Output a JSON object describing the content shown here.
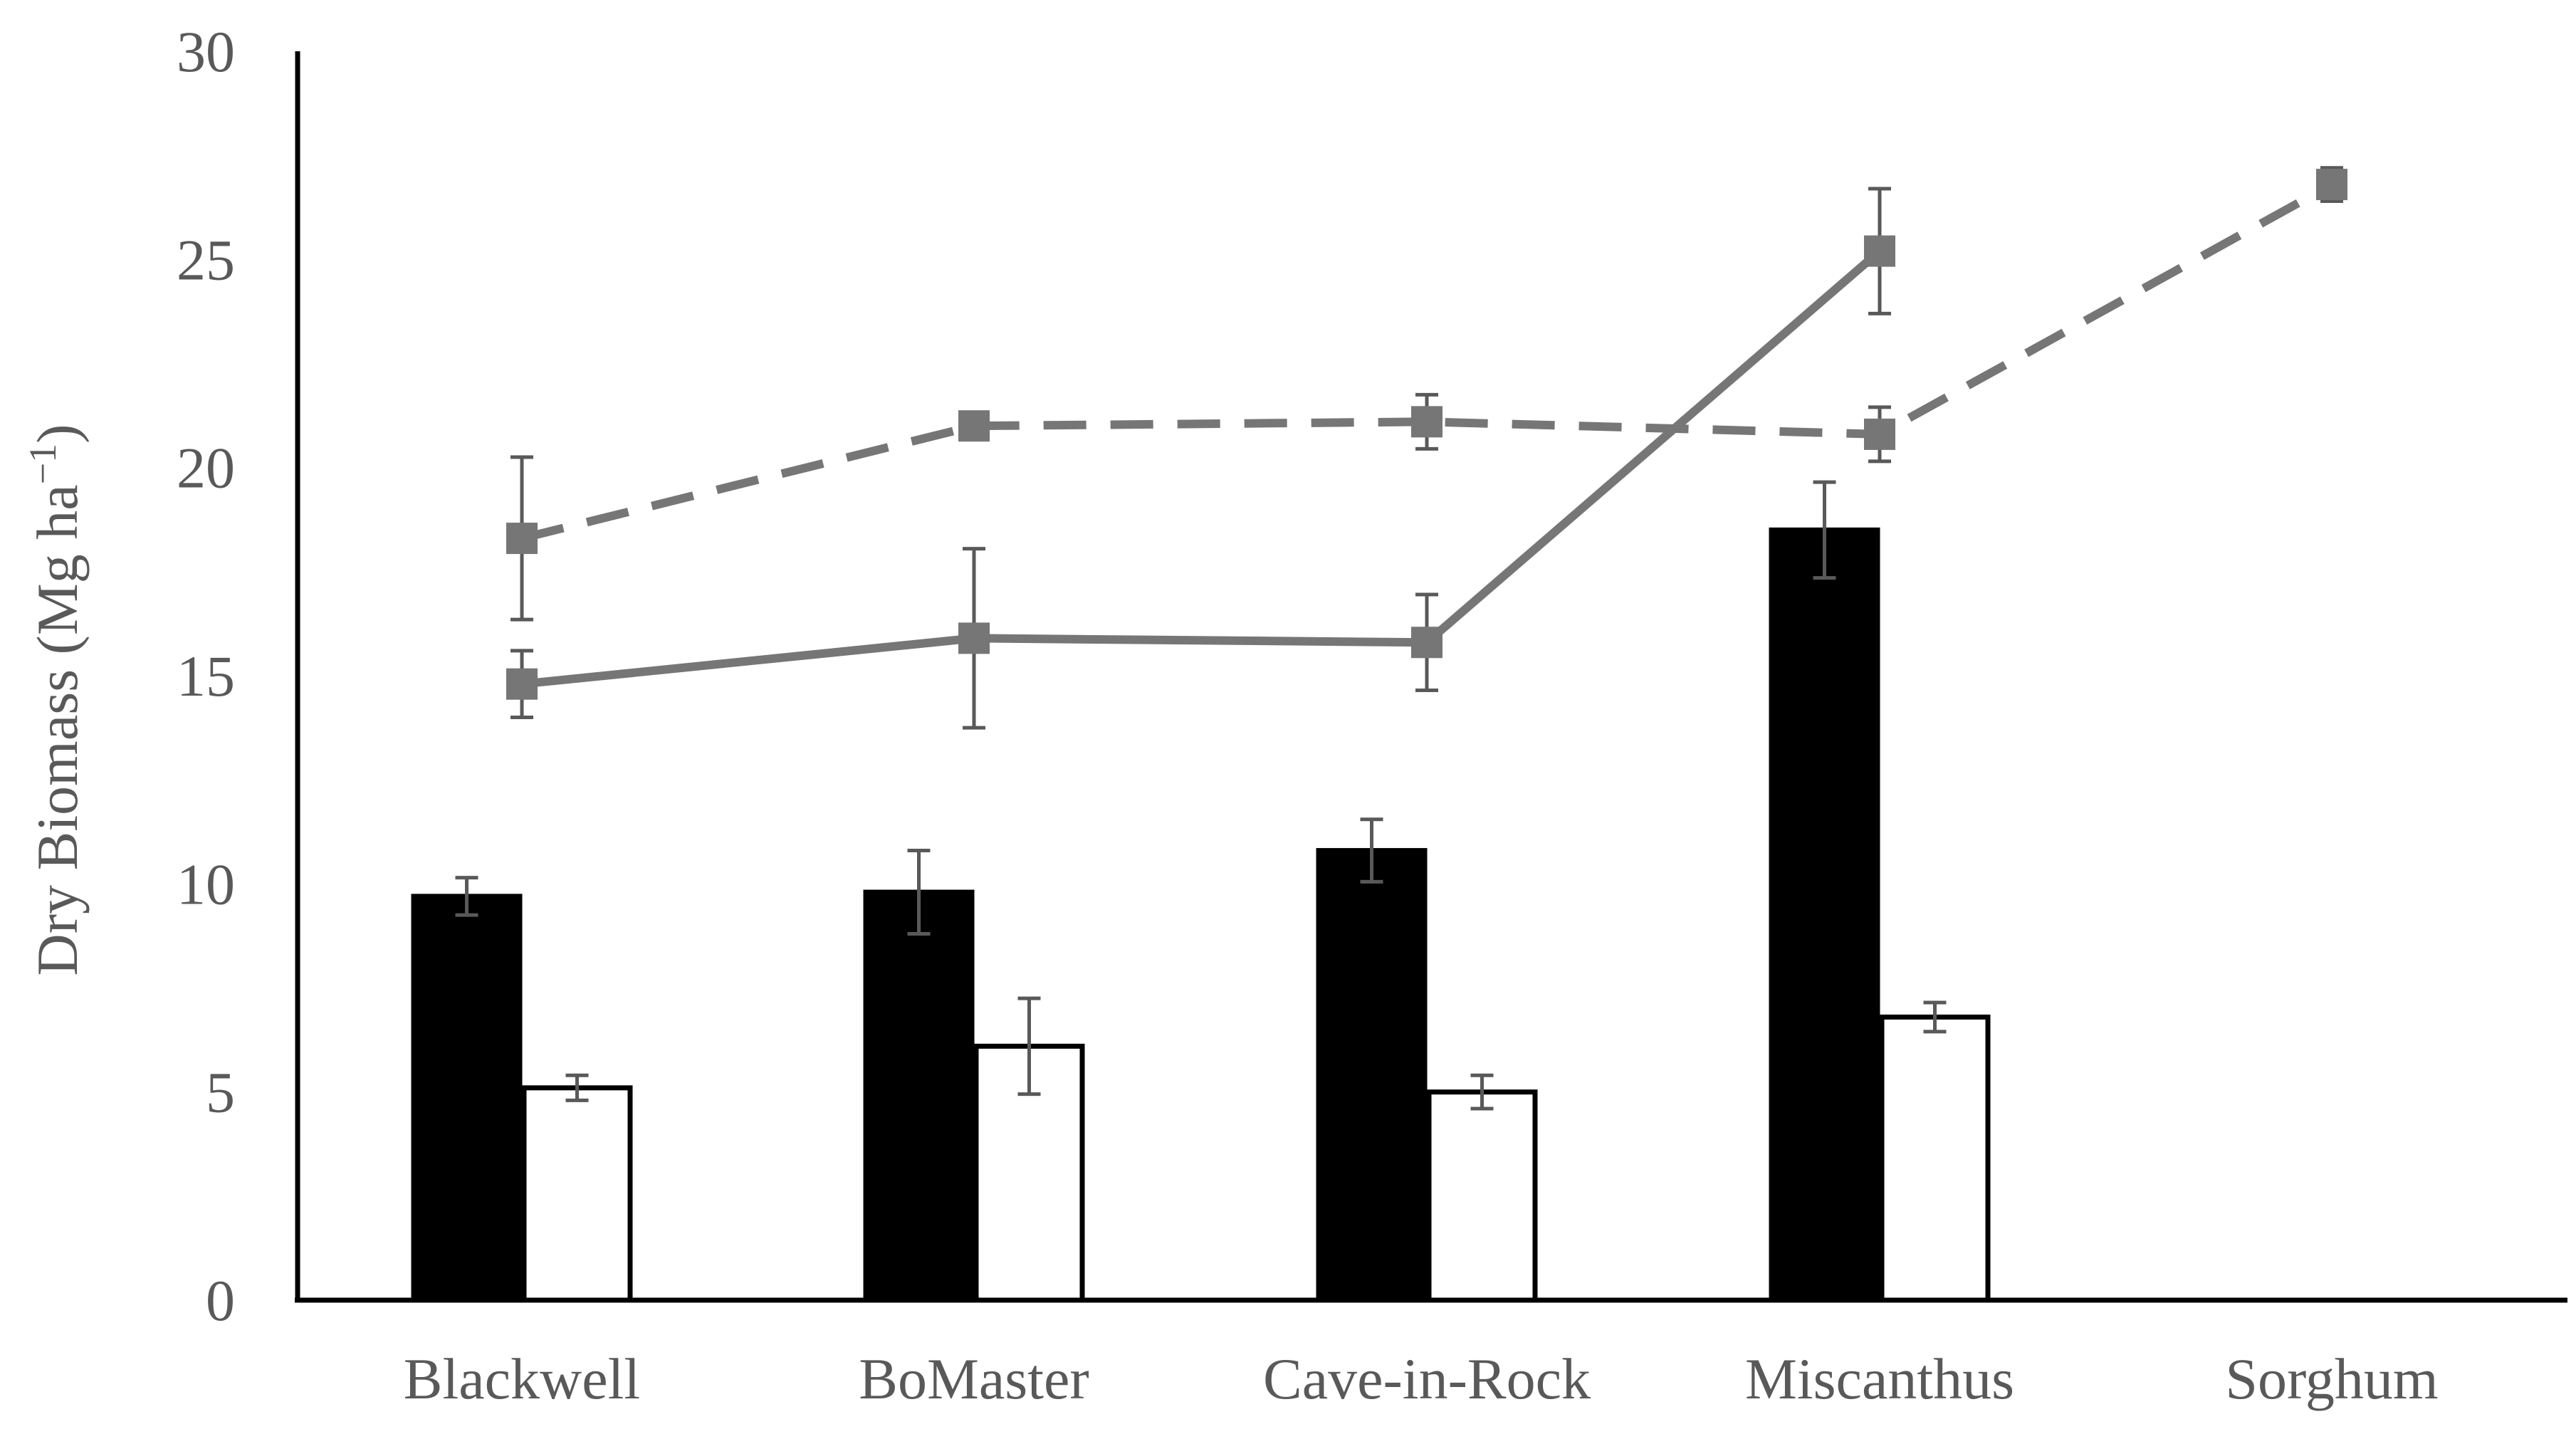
{
  "chart_data": {
    "type": "bar",
    "title": "",
    "xlabel": "",
    "ylabel": {
      "main": "Dry Biomass (Mg ha",
      "superscript": "−1",
      "close": ")"
    },
    "ylim": [
      0,
      30
    ],
    "yticks": [
      "0",
      "5",
      "10",
      "15",
      "20",
      "25",
      "30"
    ],
    "categories": [
      "Blackwell",
      "BoMaster",
      "Cave-in-Rock",
      "Miscanthus",
      "Sorghum"
    ],
    "series": [
      {
        "name": "bar-black",
        "kind": "bar",
        "fill": "#000000",
        "stroke": "#000000",
        "values": [
          9.7,
          9.8,
          10.8,
          18.5,
          null
        ],
        "errors": [
          0.45,
          1.0,
          0.75,
          1.15,
          null
        ]
      },
      {
        "name": "bar-white",
        "kind": "bar",
        "fill": "#ffffff",
        "stroke": "#000000",
        "values": [
          5.1,
          6.1,
          5.0,
          6.8,
          null
        ],
        "errors": [
          0.3,
          1.15,
          0.4,
          0.35,
          null
        ]
      },
      {
        "name": "line-solid",
        "kind": "line",
        "dash": false,
        "color": "#767676",
        "values": [
          14.8,
          15.9,
          15.8,
          25.2,
          null
        ],
        "errors": [
          0.8,
          2.15,
          1.15,
          1.5,
          null
        ]
      },
      {
        "name": "line-dashed",
        "kind": "line",
        "dash": true,
        "color": "#767676",
        "values": [
          18.3,
          21.0,
          21.1,
          20.8,
          26.8
        ],
        "errors": [
          1.95,
          0.0,
          0.65,
          0.65,
          0.4
        ]
      }
    ],
    "colors": {
      "axis": "#000000",
      "text": "#595959",
      "errorbar": "#595959"
    }
  }
}
